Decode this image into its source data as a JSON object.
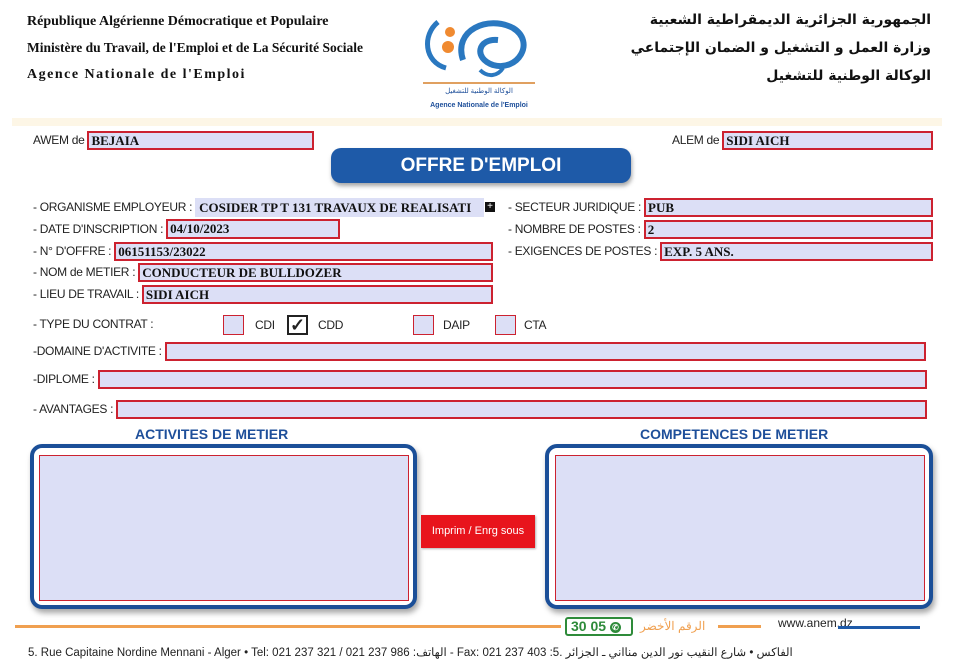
{
  "header": {
    "fr_line1": "République Algérienne Démocratique et Populaire",
    "fr_line2": "Ministère du Travail, de l'Emploi et de La Sécurité Sociale",
    "fr_line3": "Agence  Nationale  de  l'Emploi",
    "ar_line1": "الجمهورية الجزائرية الديمقراطية الشعبية",
    "ar_line2": "وزارة العمل و التشغيل و الضمان الإجتماعي",
    "ar_line3": "الوكالة الوطنية للتشغيل",
    "logo_ar": "الوكالة الوطنية للتشغيل",
    "logo_fr": "Agence Nationale de l'Emploi"
  },
  "top": {
    "awem_label": "AWEM de",
    "awem_value": "BEJAIA",
    "alem_label": "ALEM de",
    "alem_value": "SIDI AICH",
    "title": "OFFRE D'EMPLOI"
  },
  "form": {
    "organisme_label": "- ORGANISME EMPLOYEUR :",
    "organisme_value": "COSIDER TP T 131 TRAVAUX DE REALISATI",
    "date_label": "- DATE D'INSCRIPTION :",
    "date_value": "04/10/2023",
    "offre_label": "- N° D'OFFRE :",
    "offre_value": "06151153/23022",
    "metier_label": "- NOM de METIER :",
    "metier_value": "CONDUCTEUR DE BULLDOZER",
    "lieu_label": "- LIEU DE TRAVAIL :",
    "lieu_value": "SIDI AICH",
    "secteur_label": "- SECTEUR JURIDIQUE :",
    "secteur_value": "PUB",
    "postes_label": "- NOMBRE DE POSTES :",
    "postes_value": "2",
    "exigences_label": "- EXIGENCES DE POSTES :",
    "exigences_value": "EXP. 5 ANS.",
    "contrat_label": "- TYPE DU CONTRAT :",
    "contrat_options": [
      {
        "label": "CDI",
        "checked": false
      },
      {
        "label": "CDD",
        "checked": true
      },
      {
        "label": "DAIP",
        "checked": false
      },
      {
        "label": "CTA",
        "checked": false
      }
    ],
    "check_mark": "✓",
    "domaine_label": "-DOMAINE D'ACTIVITE :",
    "domaine_value": "",
    "diplome_label": "-DIPLOME :",
    "diplome_value": "",
    "avantages_label": "- AVANTAGES :",
    "avantages_value": ""
  },
  "sections": {
    "activites_title": "ACTIVITES DE METIER",
    "activites_value": "",
    "competences_title": "COMPETENCES DE METIER",
    "competences_value": "",
    "print_button": "Imprim / Enrg sous"
  },
  "footer": {
    "green_number": "30 05",
    "green_label": "الرقم الأخضر",
    "website": "www.anem.dz",
    "address": "5. Rue  Capitaine  Nordine  Mennani  -  Alger • Tel: 021 237 321 / 021 237 986 :الهاتف - Fax: 021 237 403 :الفاكس • شارع النقيب نور الدين منااني ـ الجزائر .5"
  },
  "colors": {
    "accent_blue": "#1e5aa8",
    "field_border": "#cc2230",
    "field_bg": "#dcdff6",
    "button_red": "#e8141c",
    "footer_orange": "#f0a050",
    "green": "#2e8b3a"
  }
}
